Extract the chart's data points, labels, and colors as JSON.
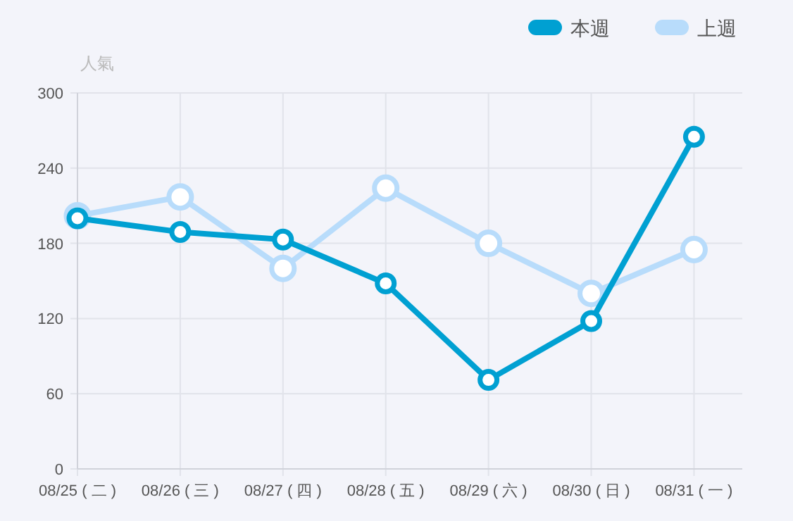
{
  "chart_data": {
    "type": "line",
    "ylabel": "人氣",
    "categories": [
      "08/25 ( 二 )",
      "08/26 ( 三 )",
      "08/27 ( 四 )",
      "08/28 ( 五 )",
      "08/29 ( 六 )",
      "08/30 ( 日 )",
      "08/31 ( 一 )"
    ],
    "series": [
      {
        "name": "本週",
        "color": "#00a0d2",
        "values": [
          200,
          189,
          183,
          148,
          71,
          118,
          265
        ]
      },
      {
        "name": "上週",
        "color": "#b8dcfb",
        "values": [
          202,
          217,
          160,
          224,
          180,
          140,
          175
        ]
      }
    ],
    "ylim": [
      0,
      300
    ],
    "yticks": [
      0,
      60,
      120,
      180,
      240,
      300
    ],
    "grid": true,
    "legend": "top right",
    "marker": "circle",
    "line_style": "solid"
  }
}
